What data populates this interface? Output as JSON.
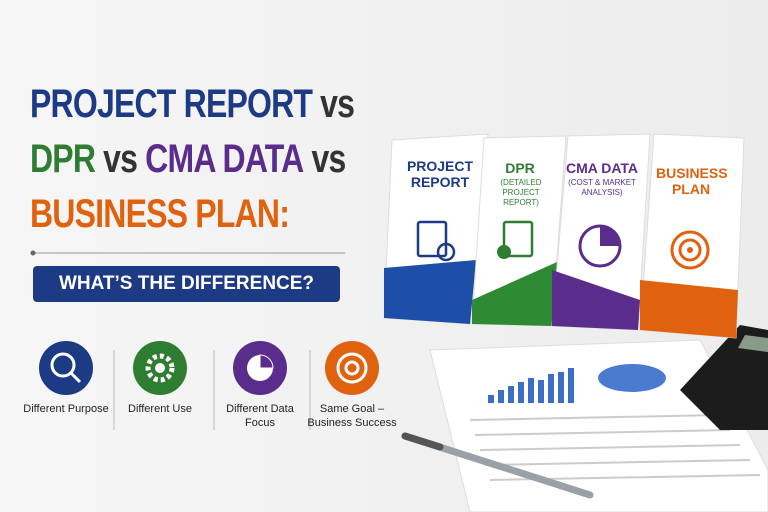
{
  "headline": {
    "lines": [
      [
        "PROJECT REPORT",
        "vs"
      ],
      [
        "DPR",
        "vs",
        "CMA DATA",
        "vs"
      ],
      [
        "BUSINESS PLAN:"
      ]
    ]
  },
  "banner": "WHAT’S THE DIFFERENCE?",
  "features": [
    {
      "label": "Different Purpose"
    },
    {
      "label": "Different Use"
    },
    {
      "label": "Different Data Focus"
    },
    {
      "label": "Same Goal – Business Success"
    }
  ],
  "cards": [
    {
      "title": "PROJECT REPORT"
    },
    {
      "title": "DPR",
      "subtitle": "(DETAILED PROJECT REPORT)"
    },
    {
      "title": "CMA DATA",
      "subtitle": "(COST & MARKET ANALYSIS)"
    },
    {
      "title": "BUSINESS PLAN"
    }
  ]
}
